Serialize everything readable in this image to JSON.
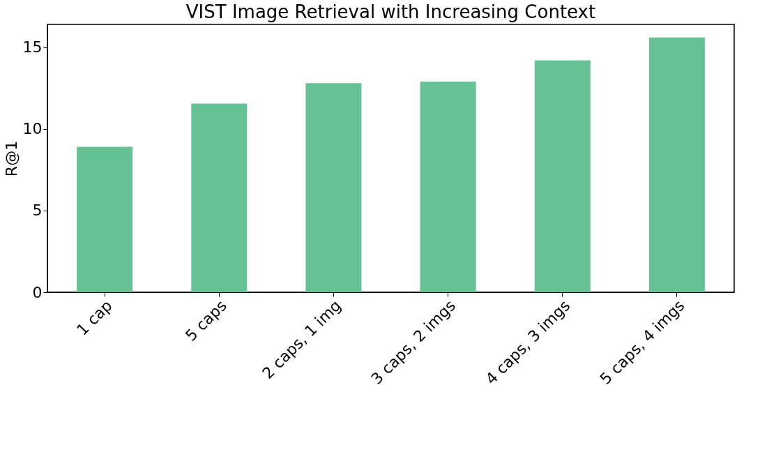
{
  "chart_data": {
    "type": "bar",
    "title": "VIST Image Retrieval with Increasing Context",
    "ylabel": "R@1",
    "categories": [
      "1 cap",
      "5 caps",
      "2 caps, 1 img",
      "3 caps, 2 imgs",
      "4 caps, 3 imgs",
      "5 caps, 4 imgs"
    ],
    "values": [
      8.9,
      11.55,
      12.8,
      12.9,
      14.2,
      15.6
    ],
    "color": "#66c194",
    "ylim": [
      0,
      16.4
    ],
    "yticks": [
      0,
      5,
      10,
      15
    ],
    "grid": false
  }
}
